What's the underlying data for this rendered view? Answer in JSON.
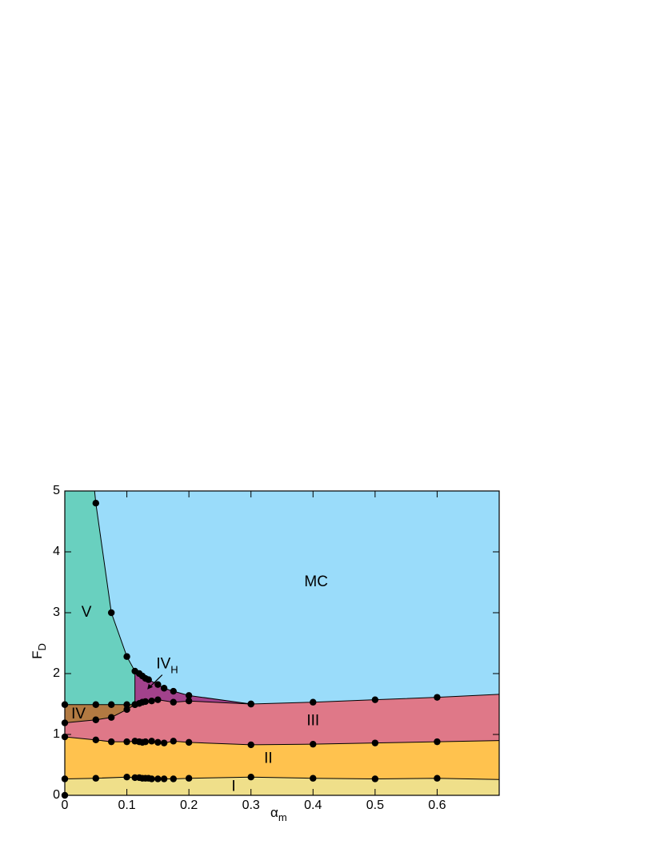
{
  "chart_data": {
    "type": "phase",
    "xlim": [
      0,
      0.7
    ],
    "xticks": [
      0,
      0.1,
      0.2,
      0.3,
      0.4,
      0.5,
      0.6
    ],
    "ylim": [
      0,
      5
    ],
    "yticks": [
      0,
      1,
      2,
      3,
      4,
      5
    ],
    "x_label": {
      "text": "α",
      "sub": "m"
    },
    "y_label": {
      "text": "F",
      "sub": "D"
    },
    "background_color": "#9adcfa",
    "boundaries": [
      {
        "x": [
          0,
          0.05,
          0.1,
          0.113,
          0.12,
          0.125,
          0.13,
          0.135,
          0.14,
          0.15,
          0.16,
          0.175,
          0.2,
          0.3,
          0.4,
          0.5,
          0.6
        ],
        "values": [
          0.27,
          0.28,
          0.3,
          0.29,
          0.29,
          0.28,
          0.28,
          0.28,
          0.27,
          0.27,
          0.27,
          0.27,
          0.28,
          0.3,
          0.28,
          0.27,
          0.28
        ],
        "end": {
          "x": 0.7,
          "value": 0.26
        }
      },
      {
        "x": [
          0,
          0.05,
          0.075,
          0.1,
          0.113,
          0.12,
          0.125,
          0.13,
          0.14,
          0.15,
          0.16,
          0.175,
          0.2,
          0.3,
          0.4,
          0.5,
          0.6
        ],
        "values": [
          0.96,
          0.91,
          0.88,
          0.88,
          0.89,
          0.88,
          0.87,
          0.88,
          0.89,
          0.87,
          0.86,
          0.89,
          0.87,
          0.83,
          0.84,
          0.86,
          0.88
        ],
        "end": {
          "x": 0.7,
          "value": 0.9
        }
      },
      {
        "x": [
          0,
          0.05,
          0.075,
          0.1,
          0.113,
          0.12,
          0.125,
          0.13,
          0.14,
          0.15,
          0.175,
          0.2,
          0.3,
          0.4,
          0.5,
          0.6
        ],
        "values": [
          1.19,
          1.24,
          1.28,
          1.41,
          1.49,
          1.51,
          1.53,
          1.54,
          1.55,
          1.57,
          1.53,
          1.55,
          1.5,
          1.53,
          1.57,
          1.61
        ],
        "end": {
          "x": 0.7,
          "value": 1.66
        }
      },
      {
        "x": [
          0,
          0.05,
          0.075,
          0.1,
          0.113
        ],
        "values": [
          1.49,
          1.49,
          1.49,
          1.49,
          1.49
        ]
      },
      {
        "start": {
          "x": 0.048,
          "value": 5
        },
        "x": [
          0.05,
          0.075,
          0.1,
          0.113,
          0.12,
          0.125,
          0.13,
          0.135,
          0.15,
          0.16,
          0.175,
          0.2,
          0.3
        ],
        "values": [
          4.8,
          3.0,
          2.28,
          2.04,
          2.0,
          1.96,
          1.92,
          1.9,
          1.82,
          1.76,
          1.71,
          1.64,
          1.5
        ]
      }
    ],
    "points": {
      "x": [
        0
      ],
      "values": [
        0
      ]
    },
    "regions": [
      {
        "name": "MC",
        "color": "#9adcfa"
      },
      {
        "name": "V",
        "color": "#69d0bf"
      },
      {
        "name": "IV",
        "sub": "H",
        "color": "#a2428c"
      },
      {
        "name": "IV",
        "color": "#b27a42"
      },
      {
        "name": "III",
        "color": "#df7888"
      },
      {
        "name": "II",
        "color": "#ffc24e"
      },
      {
        "name": "I",
        "color": "#efdf8a"
      }
    ]
  }
}
